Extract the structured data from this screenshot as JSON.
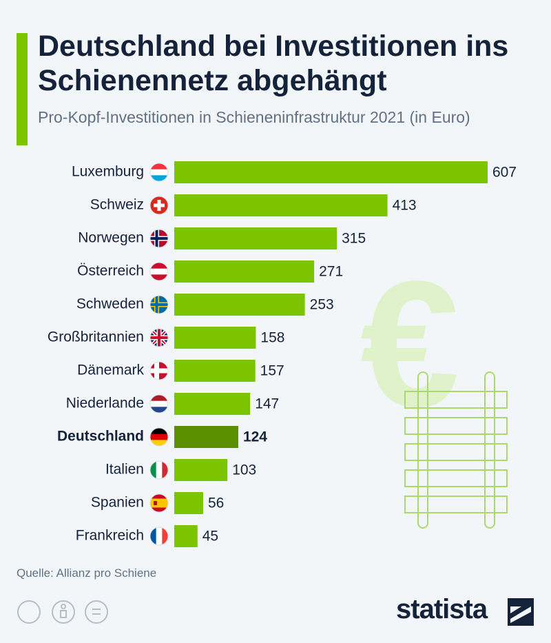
{
  "chart_data": {
    "type": "bar",
    "orientation": "horizontal",
    "title": "Deutschland bei Investitionen ins Schienennetz abgehängt",
    "subtitle": "Pro-Kopf-Investitionen in Schieneninfrastruktur 2021 (in Euro)",
    "categories": [
      "Luxemburg",
      "Schweiz",
      "Norwegen",
      "Österreich",
      "Schweden",
      "Großbritannien",
      "Dänemark",
      "Niederlande",
      "Deutschland",
      "Italien",
      "Spanien",
      "Frankreich"
    ],
    "values": [
      607,
      413,
      315,
      271,
      253,
      158,
      157,
      147,
      124,
      103,
      56,
      45
    ],
    "color": "#7dc400",
    "highlight": "Deutschland",
    "highlight_color": "#5b8f00",
    "source": "Quelle: Allianz pro Schiene",
    "brand": "statista"
  }
}
